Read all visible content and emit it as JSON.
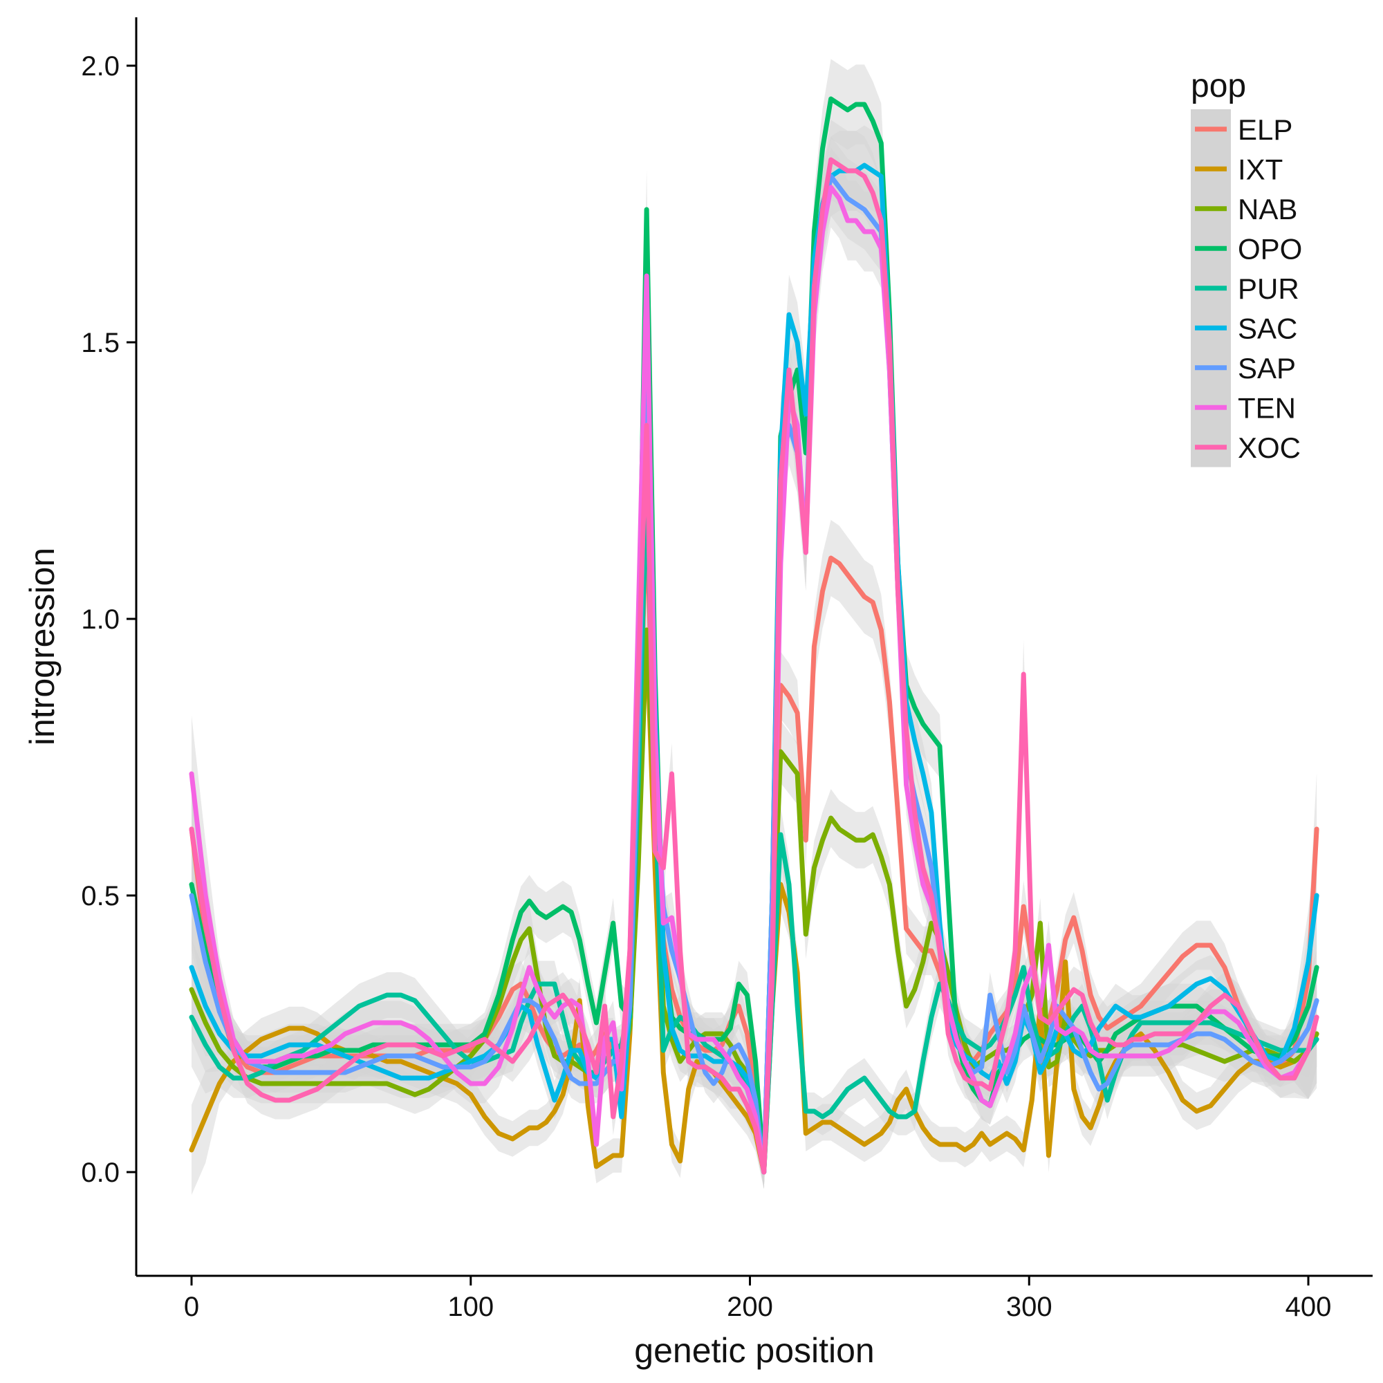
{
  "chart_data": {
    "type": "line",
    "title": "",
    "xlabel": "genetic position",
    "ylabel": "introgression",
    "xlim": [
      -20,
      424
    ],
    "ylim": [
      -0.18,
      2.09
    ],
    "xticks": [
      0,
      100,
      200,
      300,
      400
    ],
    "xtick_labels": [
      "0",
      "100",
      "200",
      "300",
      "400"
    ],
    "yticks": [
      0.0,
      0.5,
      1.0,
      1.5,
      2.0
    ],
    "ytick_labels": [
      "0.0",
      "0.5",
      "1.0",
      "1.5",
      "2.0"
    ],
    "grid": false,
    "confidence_band": true,
    "band_color": "#d3d3d3",
    "legend": {
      "title": "pop",
      "position": "top-right",
      "entries": [
        "ELP",
        "IXT",
        "NAB",
        "OPO",
        "PUR",
        "SAC",
        "SAP",
        "TEN",
        "XOC"
      ]
    },
    "x": [
      0,
      5,
      10,
      15,
      20,
      25,
      30,
      35,
      40,
      45,
      50,
      55,
      60,
      65,
      70,
      75,
      80,
      85,
      90,
      95,
      100,
      105,
      110,
      115,
      118,
      121,
      124,
      127,
      130,
      133,
      136,
      139,
      142,
      145,
      148,
      151,
      154,
      157,
      160,
      163,
      166,
      169,
      172,
      175,
      178,
      181,
      184,
      187,
      190,
      193,
      196,
      199,
      202,
      205,
      208,
      211,
      214,
      217,
      220,
      223,
      226,
      229,
      232,
      235,
      238,
      241,
      244,
      247,
      250,
      253,
      256,
      259,
      262,
      265,
      268,
      271,
      274,
      277,
      280,
      283,
      286,
      289,
      292,
      295,
      298,
      301,
      304,
      307,
      310,
      313,
      316,
      319,
      322,
      325,
      328,
      331,
      334,
      337,
      340,
      345,
      350,
      355,
      360,
      365,
      370,
      375,
      380,
      385,
      390,
      395,
      400,
      403
    ],
    "series": [
      {
        "name": "ELP",
        "color": "#F8766D",
        "values": [
          0.62,
          0.42,
          0.3,
          0.22,
          0.19,
          0.18,
          0.18,
          0.19,
          0.2,
          0.21,
          0.21,
          0.21,
          0.21,
          0.21,
          0.21,
          0.21,
          0.21,
          0.22,
          0.22,
          0.22,
          0.22,
          0.24,
          0.28,
          0.33,
          0.34,
          0.31,
          0.27,
          0.24,
          0.22,
          0.21,
          0.22,
          0.23,
          0.2,
          0.22,
          0.25,
          0.22,
          0.22,
          0.3,
          0.7,
          1.2,
          0.65,
          0.42,
          0.33,
          0.28,
          0.25,
          0.23,
          0.22,
          0.22,
          0.23,
          0.27,
          0.3,
          0.25,
          0.15,
          0.0,
          0.4,
          0.88,
          0.86,
          0.83,
          0.6,
          0.95,
          1.05,
          1.11,
          1.1,
          1.08,
          1.06,
          1.04,
          1.03,
          0.98,
          0.85,
          0.65,
          0.44,
          0.42,
          0.4,
          0.4,
          0.36,
          0.3,
          0.26,
          0.22,
          0.2,
          0.22,
          0.25,
          0.27,
          0.29,
          0.34,
          0.48,
          0.38,
          0.3,
          0.27,
          0.33,
          0.42,
          0.46,
          0.4,
          0.32,
          0.28,
          0.26,
          0.27,
          0.28,
          0.29,
          0.3,
          0.33,
          0.36,
          0.39,
          0.41,
          0.41,
          0.37,
          0.3,
          0.24,
          0.21,
          0.19,
          0.22,
          0.35,
          0.62
        ]
      },
      {
        "name": "IXT",
        "color": "#CD9600",
        "values": [
          0.04,
          0.1,
          0.16,
          0.2,
          0.22,
          0.24,
          0.25,
          0.26,
          0.26,
          0.25,
          0.23,
          0.22,
          0.22,
          0.21,
          0.2,
          0.2,
          0.19,
          0.18,
          0.17,
          0.16,
          0.14,
          0.1,
          0.07,
          0.06,
          0.07,
          0.08,
          0.08,
          0.09,
          0.11,
          0.14,
          0.2,
          0.31,
          0.12,
          0.01,
          0.02,
          0.03,
          0.03,
          0.25,
          0.62,
          0.98,
          0.55,
          0.18,
          0.05,
          0.02,
          0.15,
          0.2,
          0.19,
          0.18,
          0.16,
          0.14,
          0.12,
          0.1,
          0.07,
          0.0,
          0.3,
          0.52,
          0.47,
          0.36,
          0.07,
          0.08,
          0.09,
          0.09,
          0.08,
          0.07,
          0.06,
          0.05,
          0.06,
          0.07,
          0.09,
          0.13,
          0.15,
          0.11,
          0.08,
          0.06,
          0.05,
          0.05,
          0.05,
          0.04,
          0.05,
          0.07,
          0.05,
          0.06,
          0.07,
          0.06,
          0.04,
          0.13,
          0.3,
          0.03,
          0.2,
          0.38,
          0.15,
          0.1,
          0.08,
          0.12,
          0.17,
          0.2,
          0.22,
          0.24,
          0.25,
          0.22,
          0.18,
          0.13,
          0.11,
          0.12,
          0.15,
          0.18,
          0.2,
          0.2,
          0.19,
          0.2,
          0.22,
          0.25
        ]
      },
      {
        "name": "NAB",
        "color": "#7CAE00",
        "values": [
          0.33,
          0.27,
          0.22,
          0.19,
          0.17,
          0.16,
          0.16,
          0.16,
          0.16,
          0.16,
          0.16,
          0.16,
          0.16,
          0.16,
          0.16,
          0.15,
          0.14,
          0.15,
          0.17,
          0.19,
          0.21,
          0.24,
          0.3,
          0.38,
          0.42,
          0.44,
          0.35,
          0.26,
          0.21,
          0.2,
          0.2,
          0.19,
          0.18,
          0.17,
          0.18,
          0.2,
          0.21,
          0.26,
          0.55,
          0.98,
          0.65,
          0.3,
          0.24,
          0.2,
          0.22,
          0.24,
          0.25,
          0.25,
          0.25,
          0.23,
          0.2,
          0.18,
          0.14,
          0.0,
          0.38,
          0.76,
          0.74,
          0.72,
          0.43,
          0.55,
          0.6,
          0.64,
          0.62,
          0.61,
          0.6,
          0.6,
          0.61,
          0.57,
          0.52,
          0.4,
          0.3,
          0.33,
          0.38,
          0.45,
          0.42,
          0.36,
          0.29,
          0.23,
          0.19,
          0.2,
          0.21,
          0.22,
          0.22,
          0.23,
          0.28,
          0.32,
          0.45,
          0.19,
          0.2,
          0.28,
          0.24,
          0.22,
          0.21,
          0.22,
          0.22,
          0.23,
          0.23,
          0.23,
          0.23,
          0.23,
          0.23,
          0.23,
          0.22,
          0.21,
          0.2,
          0.21,
          0.22,
          0.22,
          0.21,
          0.2,
          0.22,
          0.25
        ]
      },
      {
        "name": "OPO",
        "color": "#00BE67",
        "values": [
          0.52,
          0.4,
          0.3,
          0.24,
          0.2,
          0.19,
          0.19,
          0.2,
          0.21,
          0.21,
          0.22,
          0.22,
          0.22,
          0.23,
          0.23,
          0.23,
          0.23,
          0.23,
          0.23,
          0.23,
          0.23,
          0.25,
          0.32,
          0.42,
          0.47,
          0.49,
          0.47,
          0.46,
          0.47,
          0.48,
          0.47,
          0.42,
          0.34,
          0.27,
          0.36,
          0.45,
          0.3,
          0.28,
          0.9,
          1.74,
          0.9,
          0.4,
          0.28,
          0.26,
          0.25,
          0.25,
          0.24,
          0.24,
          0.24,
          0.26,
          0.34,
          0.32,
          0.2,
          0.0,
          0.5,
          1.33,
          1.4,
          1.45,
          1.3,
          1.7,
          1.85,
          1.94,
          1.93,
          1.92,
          1.93,
          1.93,
          1.9,
          1.86,
          1.55,
          1.1,
          0.88,
          0.84,
          0.81,
          0.79,
          0.77,
          0.5,
          0.25,
          0.18,
          0.15,
          0.13,
          0.12,
          0.18,
          0.2,
          0.22,
          0.24,
          0.25,
          0.24,
          0.23,
          0.23,
          0.24,
          0.25,
          0.24,
          0.22,
          0.2,
          0.22,
          0.25,
          0.26,
          0.27,
          0.28,
          0.29,
          0.3,
          0.3,
          0.3,
          0.28,
          0.26,
          0.24,
          0.22,
          0.21,
          0.21,
          0.24,
          0.3,
          0.37
        ]
      },
      {
        "name": "PUR",
        "color": "#00C19A",
        "values": [
          0.28,
          0.23,
          0.19,
          0.17,
          0.17,
          0.18,
          0.2,
          0.21,
          0.22,
          0.24,
          0.26,
          0.28,
          0.3,
          0.31,
          0.32,
          0.32,
          0.31,
          0.28,
          0.25,
          0.22,
          0.2,
          0.2,
          0.21,
          0.22,
          0.27,
          0.31,
          0.34,
          0.34,
          0.34,
          0.28,
          0.22,
          0.2,
          0.18,
          0.18,
          0.2,
          0.22,
          0.23,
          0.3,
          0.7,
          1.25,
          0.7,
          0.22,
          0.26,
          0.28,
          0.27,
          0.25,
          0.23,
          0.22,
          0.21,
          0.2,
          0.18,
          0.15,
          0.1,
          0.0,
          0.3,
          0.61,
          0.52,
          0.3,
          0.11,
          0.11,
          0.1,
          0.11,
          0.13,
          0.15,
          0.16,
          0.17,
          0.15,
          0.13,
          0.11,
          0.1,
          0.1,
          0.11,
          0.2,
          0.28,
          0.34,
          0.31,
          0.27,
          0.24,
          0.23,
          0.22,
          0.23,
          0.25,
          0.28,
          0.32,
          0.37,
          0.28,
          0.22,
          0.21,
          0.22,
          0.25,
          0.28,
          0.3,
          0.26,
          0.2,
          0.13,
          0.18,
          0.22,
          0.25,
          0.27,
          0.27,
          0.27,
          0.27,
          0.27,
          0.27,
          0.26,
          0.25,
          0.24,
          0.23,
          0.22,
          0.22,
          0.22,
          0.24
        ]
      },
      {
        "name": "SAC",
        "color": "#00B8E7",
        "values": [
          0.37,
          0.3,
          0.25,
          0.22,
          0.21,
          0.21,
          0.22,
          0.23,
          0.23,
          0.23,
          0.22,
          0.21,
          0.2,
          0.19,
          0.18,
          0.17,
          0.17,
          0.17,
          0.18,
          0.19,
          0.2,
          0.21,
          0.23,
          0.27,
          0.3,
          0.29,
          0.23,
          0.18,
          0.13,
          0.17,
          0.22,
          0.22,
          0.18,
          0.17,
          0.24,
          0.24,
          0.1,
          0.3,
          0.8,
          1.55,
          0.85,
          0.4,
          0.26,
          0.22,
          0.21,
          0.21,
          0.21,
          0.2,
          0.2,
          0.2,
          0.19,
          0.17,
          0.13,
          0.0,
          0.5,
          1.3,
          1.55,
          1.5,
          1.37,
          1.65,
          1.75,
          1.8,
          1.81,
          1.81,
          1.81,
          1.82,
          1.81,
          1.8,
          1.5,
          1.1,
          0.85,
          0.78,
          0.72,
          0.65,
          0.45,
          0.28,
          0.23,
          0.21,
          0.2,
          0.18,
          0.17,
          0.2,
          0.16,
          0.2,
          0.28,
          0.25,
          0.18,
          0.21,
          0.26,
          0.25,
          0.22,
          0.21,
          0.23,
          0.26,
          0.28,
          0.3,
          0.29,
          0.28,
          0.28,
          0.29,
          0.3,
          0.32,
          0.34,
          0.35,
          0.33,
          0.29,
          0.25,
          0.21,
          0.2,
          0.26,
          0.38,
          0.5
        ]
      },
      {
        "name": "SAP",
        "color": "#619CFF",
        "values": [
          0.5,
          0.38,
          0.29,
          0.23,
          0.2,
          0.19,
          0.18,
          0.18,
          0.18,
          0.18,
          0.18,
          0.18,
          0.19,
          0.2,
          0.21,
          0.21,
          0.21,
          0.2,
          0.19,
          0.19,
          0.19,
          0.2,
          0.23,
          0.28,
          0.31,
          0.31,
          0.3,
          0.27,
          0.24,
          0.2,
          0.17,
          0.16,
          0.16,
          0.16,
          0.18,
          0.2,
          0.2,
          0.3,
          0.8,
          1.45,
          0.75,
          0.48,
          0.4,
          0.35,
          0.29,
          0.23,
          0.18,
          0.16,
          0.18,
          0.22,
          0.23,
          0.2,
          0.13,
          0.0,
          0.5,
          1.25,
          1.35,
          1.3,
          1.15,
          1.6,
          1.72,
          1.8,
          1.78,
          1.76,
          1.75,
          1.74,
          1.72,
          1.7,
          1.45,
          1.05,
          0.75,
          0.68,
          0.62,
          0.55,
          0.42,
          0.3,
          0.24,
          0.2,
          0.18,
          0.19,
          0.32,
          0.25,
          0.18,
          0.22,
          0.3,
          0.25,
          0.2,
          0.24,
          0.3,
          0.28,
          0.26,
          0.22,
          0.18,
          0.15,
          0.16,
          0.19,
          0.22,
          0.23,
          0.23,
          0.23,
          0.23,
          0.24,
          0.25,
          0.25,
          0.24,
          0.22,
          0.2,
          0.19,
          0.2,
          0.22,
          0.26,
          0.31
        ]
      },
      {
        "name": "TEN",
        "color": "#F564E3",
        "values": [
          0.72,
          0.5,
          0.35,
          0.24,
          0.2,
          0.2,
          0.2,
          0.21,
          0.21,
          0.22,
          0.23,
          0.25,
          0.26,
          0.27,
          0.27,
          0.27,
          0.26,
          0.24,
          0.21,
          0.18,
          0.16,
          0.16,
          0.19,
          0.26,
          0.32,
          0.37,
          0.33,
          0.3,
          0.28,
          0.3,
          0.31,
          0.3,
          0.2,
          0.05,
          0.24,
          0.27,
          0.15,
          0.4,
          1.0,
          1.62,
          0.8,
          0.45,
          0.46,
          0.36,
          0.25,
          0.24,
          0.24,
          0.24,
          0.22,
          0.2,
          0.17,
          0.15,
          0.1,
          0.0,
          0.4,
          1.1,
          1.4,
          1.35,
          1.12,
          1.55,
          1.7,
          1.78,
          1.76,
          1.72,
          1.72,
          1.7,
          1.7,
          1.67,
          1.45,
          1.05,
          0.7,
          0.6,
          0.52,
          0.48,
          0.42,
          0.3,
          0.24,
          0.2,
          0.17,
          0.13,
          0.12,
          0.16,
          0.2,
          0.25,
          0.33,
          0.37,
          0.3,
          0.41,
          0.26,
          0.25,
          0.26,
          0.25,
          0.22,
          0.21,
          0.21,
          0.21,
          0.21,
          0.21,
          0.21,
          0.21,
          0.22,
          0.24,
          0.27,
          0.29,
          0.29,
          0.27,
          0.23,
          0.19,
          0.17,
          0.18,
          0.22,
          0.28
        ]
      },
      {
        "name": "XOC",
        "color": "#FF64B0",
        "values": [
          0.62,
          0.45,
          0.32,
          0.22,
          0.16,
          0.14,
          0.13,
          0.13,
          0.14,
          0.15,
          0.17,
          0.19,
          0.21,
          0.22,
          0.23,
          0.23,
          0.23,
          0.22,
          0.21,
          0.22,
          0.23,
          0.24,
          0.22,
          0.2,
          0.22,
          0.24,
          0.27,
          0.3,
          0.31,
          0.32,
          0.3,
          0.27,
          0.23,
          0.18,
          0.3,
          0.1,
          0.2,
          0.4,
          0.9,
          1.35,
          0.58,
          0.55,
          0.72,
          0.4,
          0.2,
          0.19,
          0.19,
          0.18,
          0.17,
          0.15,
          0.15,
          0.12,
          0.08,
          0.0,
          0.35,
          1.25,
          1.45,
          1.3,
          1.12,
          1.6,
          1.74,
          1.83,
          1.82,
          1.81,
          1.81,
          1.8,
          1.77,
          1.72,
          1.5,
          1.05,
          0.8,
          0.65,
          0.55,
          0.5,
          0.4,
          0.25,
          0.2,
          0.17,
          0.16,
          0.16,
          0.15,
          0.22,
          0.28,
          0.4,
          0.9,
          0.4,
          0.28,
          0.27,
          0.29,
          0.31,
          0.33,
          0.32,
          0.27,
          0.24,
          0.24,
          0.23,
          0.23,
          0.24,
          0.24,
          0.25,
          0.25,
          0.25,
          0.27,
          0.3,
          0.32,
          0.3,
          0.25,
          0.2,
          0.17,
          0.17,
          0.22,
          0.28
        ]
      }
    ]
  }
}
